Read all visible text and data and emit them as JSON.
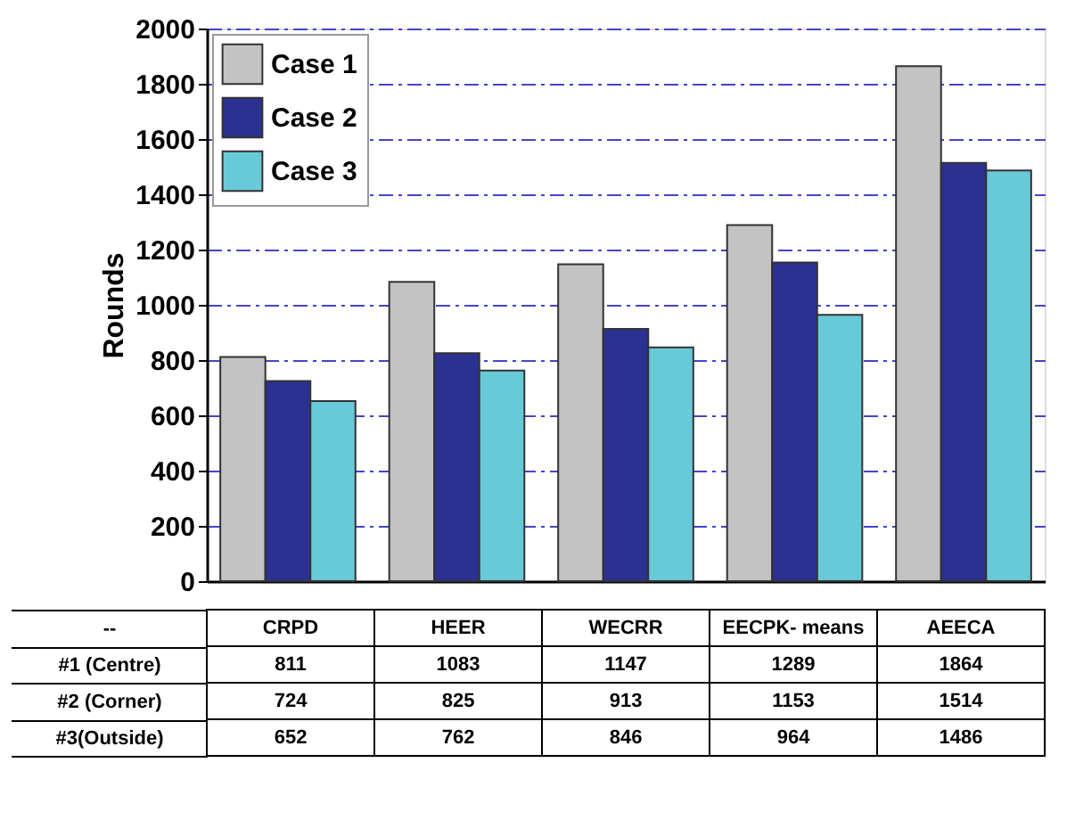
{
  "chart_data": {
    "type": "bar",
    "ylabel": "Rounds",
    "categories": [
      "CRPD",
      "HEER",
      "WECRR",
      "EECPK- means",
      "AEECA"
    ],
    "series": [
      {
        "name": "Case 1",
        "color": "#c3c3c3",
        "values": [
          811,
          1083,
          1147,
          1289,
          1864
        ]
      },
      {
        "name": "Case 2",
        "color": "#2b3190",
        "values": [
          724,
          825,
          913,
          1153,
          1514
        ]
      },
      {
        "name": "Case 3",
        "color": "#68c9d9",
        "values": [
          652,
          762,
          846,
          964,
          1486
        ]
      }
    ],
    "ylim": [
      0,
      2000
    ],
    "yticks": [
      0,
      200,
      400,
      600,
      800,
      1000,
      1200,
      1400,
      1600,
      1800,
      2000
    ],
    "grid": "y",
    "legend": "top left",
    "tick_labels": "y",
    "data_labels": true,
    "annotations": [
      "--",
      "#1 (Centre)",
      "#2 (Corner)",
      "#3(Outside)"
    ]
  }
}
